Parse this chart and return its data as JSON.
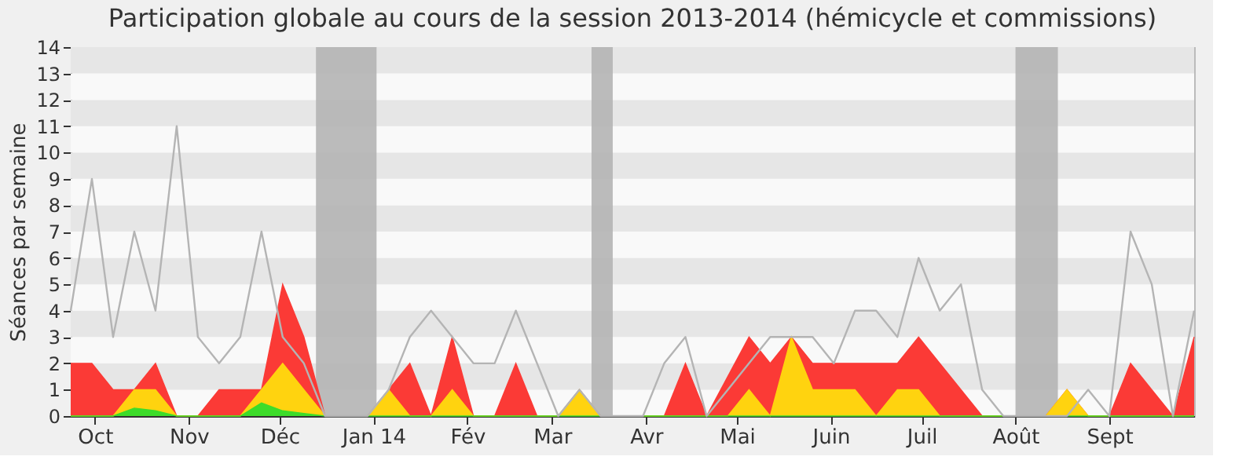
{
  "chart_data": {
    "type": "area",
    "title": "Participation globale au cours de la session 2013-2014 (hémicycle et commissions)",
    "ylabel": "Séances par semaine",
    "x": [
      "2013-09-23",
      "2013-09-30",
      "2013-10-07",
      "2013-10-14",
      "2013-10-21",
      "2013-10-28",
      "2013-11-04",
      "2013-11-11",
      "2013-11-18",
      "2013-11-25",
      "2013-12-02",
      "2013-12-09",
      "2013-12-16",
      "2013-12-23",
      "2013-12-30",
      "2014-01-06",
      "2014-01-13",
      "2014-01-20",
      "2014-01-27",
      "2014-02-03",
      "2014-02-10",
      "2014-02-17",
      "2014-02-24",
      "2014-03-03",
      "2014-03-10",
      "2014-03-17",
      "2014-03-24",
      "2014-03-31",
      "2014-04-07",
      "2014-04-14",
      "2014-04-21",
      "2014-04-28",
      "2014-05-05",
      "2014-05-12",
      "2014-05-19",
      "2014-05-26",
      "2014-06-02",
      "2014-06-09",
      "2014-06-16",
      "2014-06-23",
      "2014-06-30",
      "2014-07-07",
      "2014-07-14",
      "2014-07-21",
      "2014-07-28",
      "2014-08-04",
      "2014-08-11",
      "2014-08-18",
      "2014-08-25",
      "2014-09-01",
      "2014-09-08",
      "2014-09-15",
      "2014-09-22",
      "2014-09-29"
    ],
    "series": [
      {
        "color": "#fb3a36",
        "values": [
          2,
          2,
          1,
          1,
          2,
          0,
          0,
          1,
          1,
          1,
          5,
          3,
          0,
          0,
          0,
          1,
          2,
          0,
          3,
          0,
          0,
          2,
          0,
          0,
          1,
          0,
          0,
          0,
          0,
          2,
          0,
          1.5,
          3,
          2,
          3,
          2,
          2,
          2,
          2,
          2,
          3,
          2,
          1,
          0,
          0,
          0,
          0,
          1,
          0,
          0,
          2,
          1,
          0,
          3
        ]
      },
      {
        "color": "#ffd30f",
        "values": [
          0,
          0,
          0,
          1,
          1,
          0,
          0,
          0,
          0,
          1,
          2,
          1,
          0,
          0,
          0,
          1,
          0,
          0,
          1,
          0,
          0,
          0,
          0,
          0,
          1,
          0,
          0,
          0,
          0,
          0,
          0,
          0,
          1,
          0,
          3,
          1,
          1,
          1,
          0,
          1,
          1,
          0,
          0,
          0,
          0,
          0,
          0,
          1,
          0,
          0,
          0,
          0,
          0,
          0
        ]
      },
      {
        "color": "#3ddc2a",
        "values": [
          0,
          0,
          0,
          0.3,
          0.2,
          0,
          0,
          0,
          0,
          0.5,
          0.2,
          0.1,
          0,
          0,
          0,
          0,
          0,
          0,
          0,
          0,
          0,
          0,
          0,
          0,
          0,
          0,
          0,
          0,
          0,
          0,
          0,
          0,
          0,
          0,
          0,
          0,
          0,
          0,
          0,
          0,
          0,
          0,
          0,
          0,
          0,
          0,
          0,
          0,
          0,
          0,
          0,
          0,
          0,
          0
        ]
      },
      {
        "type": "line",
        "color": "#b4b4b4",
        "values": [
          4,
          9,
          3,
          7,
          4,
          11,
          3,
          2,
          3,
          7,
          3,
          2,
          0,
          0,
          0,
          1,
          3,
          4,
          3,
          2,
          2,
          4,
          2,
          0,
          1,
          0,
          0,
          0,
          2,
          3,
          0,
          1,
          2,
          3,
          3,
          3,
          2,
          4,
          4,
          3,
          6,
          4,
          5,
          1,
          0,
          0,
          0,
          0,
          1,
          0,
          7,
          5,
          0,
          4
        ]
      }
    ],
    "xlim": [
      "2013-09-23",
      "2014-09-29"
    ],
    "ylim": [
      0,
      14
    ],
    "yticks": [
      0,
      1,
      2,
      3,
      4,
      5,
      6,
      7,
      8,
      9,
      10,
      11,
      12,
      13,
      14
    ],
    "xticks": [
      {
        "value": "2013-10-01",
        "label": "Oct"
      },
      {
        "value": "2013-11-01",
        "label": "Nov"
      },
      {
        "value": "2013-12-01",
        "label": "Déc"
      },
      {
        "value": "2014-01-01",
        "label": "Jan 14"
      },
      {
        "value": "2014-02-01",
        "label": "Fév"
      },
      {
        "value": "2014-03-01",
        "label": "Mar"
      },
      {
        "value": "2014-04-01",
        "label": "Avr"
      },
      {
        "value": "2014-05-01",
        "label": "Mai"
      },
      {
        "value": "2014-06-01",
        "label": "Juin"
      },
      {
        "value": "2014-07-01",
        "label": "Juil"
      },
      {
        "value": "2014-08-01",
        "label": "Août"
      },
      {
        "value": "2014-09-01",
        "label": "Sept"
      }
    ],
    "bands": [
      {
        "axis": "x",
        "from": "2013-12-13",
        "to": "2014-01-02",
        "color": "#b0b0b0"
      },
      {
        "axis": "x",
        "from": "2014-03-14",
        "to": "2014-03-21",
        "color": "#b0b0b0"
      },
      {
        "axis": "x",
        "from": "2014-08-01",
        "to": "2014-08-15",
        "color": "#b0b0b0"
      }
    ]
  }
}
